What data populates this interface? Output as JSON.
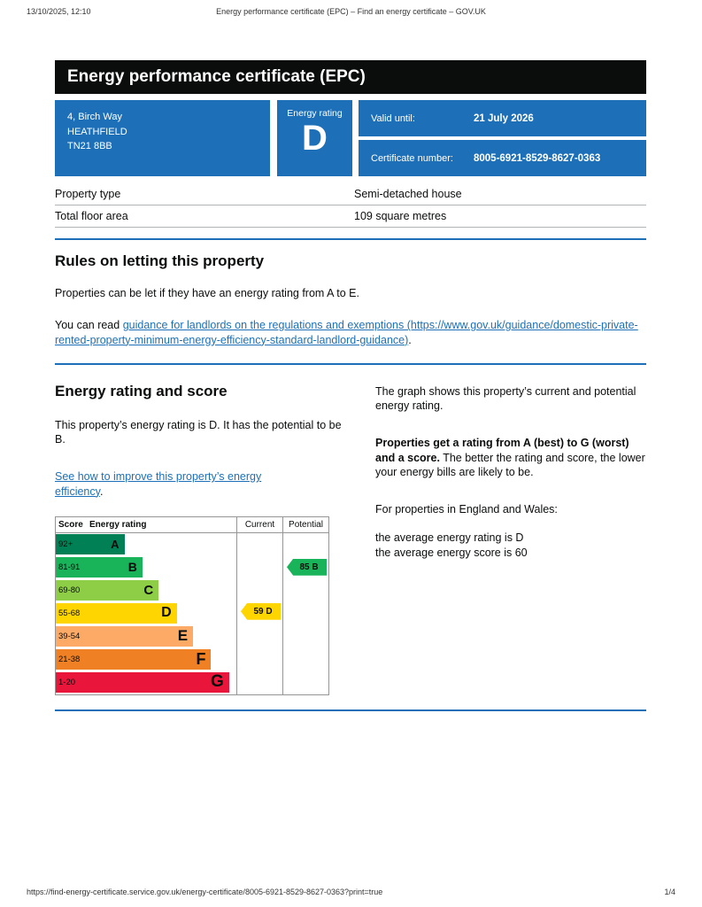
{
  "print_header": {
    "datetime": "13/10/2025, 12:10",
    "title": "Energy performance certificate (EPC) – Find an energy certificate – GOV.UK"
  },
  "banner": {
    "title": "Energy performance certificate (EPC)"
  },
  "summary": {
    "address_lines": [
      "4, Birch Way",
      "HEATHFIELD",
      "TN21 8BB"
    ],
    "energy_rating_label": "Energy rating",
    "energy_rating": "D",
    "valid_until_label": "Valid until:",
    "valid_until": "21 July 2026",
    "certificate_number_label": "Certificate number:",
    "certificate_number": "8005-6921-8529-8627-0363"
  },
  "property_table": {
    "rows": [
      {
        "label": "Property type",
        "value": "Semi-detached house"
      },
      {
        "label": "Total floor area",
        "value": "109 square metres"
      }
    ]
  },
  "rules_section": {
    "heading": "Rules on letting this property",
    "paragraph1": "Properties can be let if they have an energy rating from A to E.",
    "paragraph2_prefix": "You can read ",
    "link_text": "guidance for landlords on the regulations and exemptions (https://www.gov.uk/guidance/domestic-private-rented-property-minimum-energy-efficiency-standard-landlord-guidance)",
    "paragraph2_suffix": "."
  },
  "rating_section": {
    "heading": "Energy rating and score",
    "paragraph1": "This property’s energy rating is D. It has the potential to be B.",
    "improve_link": "See how to improve this property’s energy efficiency",
    "improve_link_suffix": ".",
    "right_para1": "The graph shows this property’s current and potential energy rating.",
    "right_para2_bold": "Properties get a rating from A (best) to G (worst) and a score.",
    "right_para2_rest": " The better the rating and score, the lower your energy bills are likely to be.",
    "right_para3": "For properties in England and Wales:",
    "right_para4_line1": "the average energy rating is D",
    "right_para4_line2": "the average energy score is 60"
  },
  "chart_data": {
    "type": "epc-rating-chart",
    "headers": [
      "Score",
      "Energy rating",
      "Current",
      "Potential"
    ],
    "bands": [
      {
        "score": "92+",
        "letter": "A",
        "color": "#008054",
        "width_pct": 38
      },
      {
        "score": "81-91",
        "letter": "B",
        "color": "#19b459",
        "width_pct": 48
      },
      {
        "score": "69-80",
        "letter": "C",
        "color": "#8dce46",
        "width_pct": 57
      },
      {
        "score": "55-68",
        "letter": "D",
        "color": "#ffd500",
        "width_pct": 67
      },
      {
        "score": "39-54",
        "letter": "E",
        "color": "#fcaa65",
        "width_pct": 76
      },
      {
        "score": "21-38",
        "letter": "F",
        "color": "#ef8023",
        "width_pct": 86
      },
      {
        "score": "1-20",
        "letter": "G",
        "color": "#e9153b",
        "width_pct": 96
      }
    ],
    "current": {
      "score": 59,
      "letter": "D",
      "band_index": 3,
      "color": "#ffd500"
    },
    "potential": {
      "score": 85,
      "letter": "B",
      "band_index": 1,
      "color": "#19b459"
    }
  },
  "print_footer": {
    "url": "https://find-energy-certificate.service.gov.uk/energy-certificate/8005-6921-8529-8627-0363?print=true",
    "page": "1/4"
  }
}
